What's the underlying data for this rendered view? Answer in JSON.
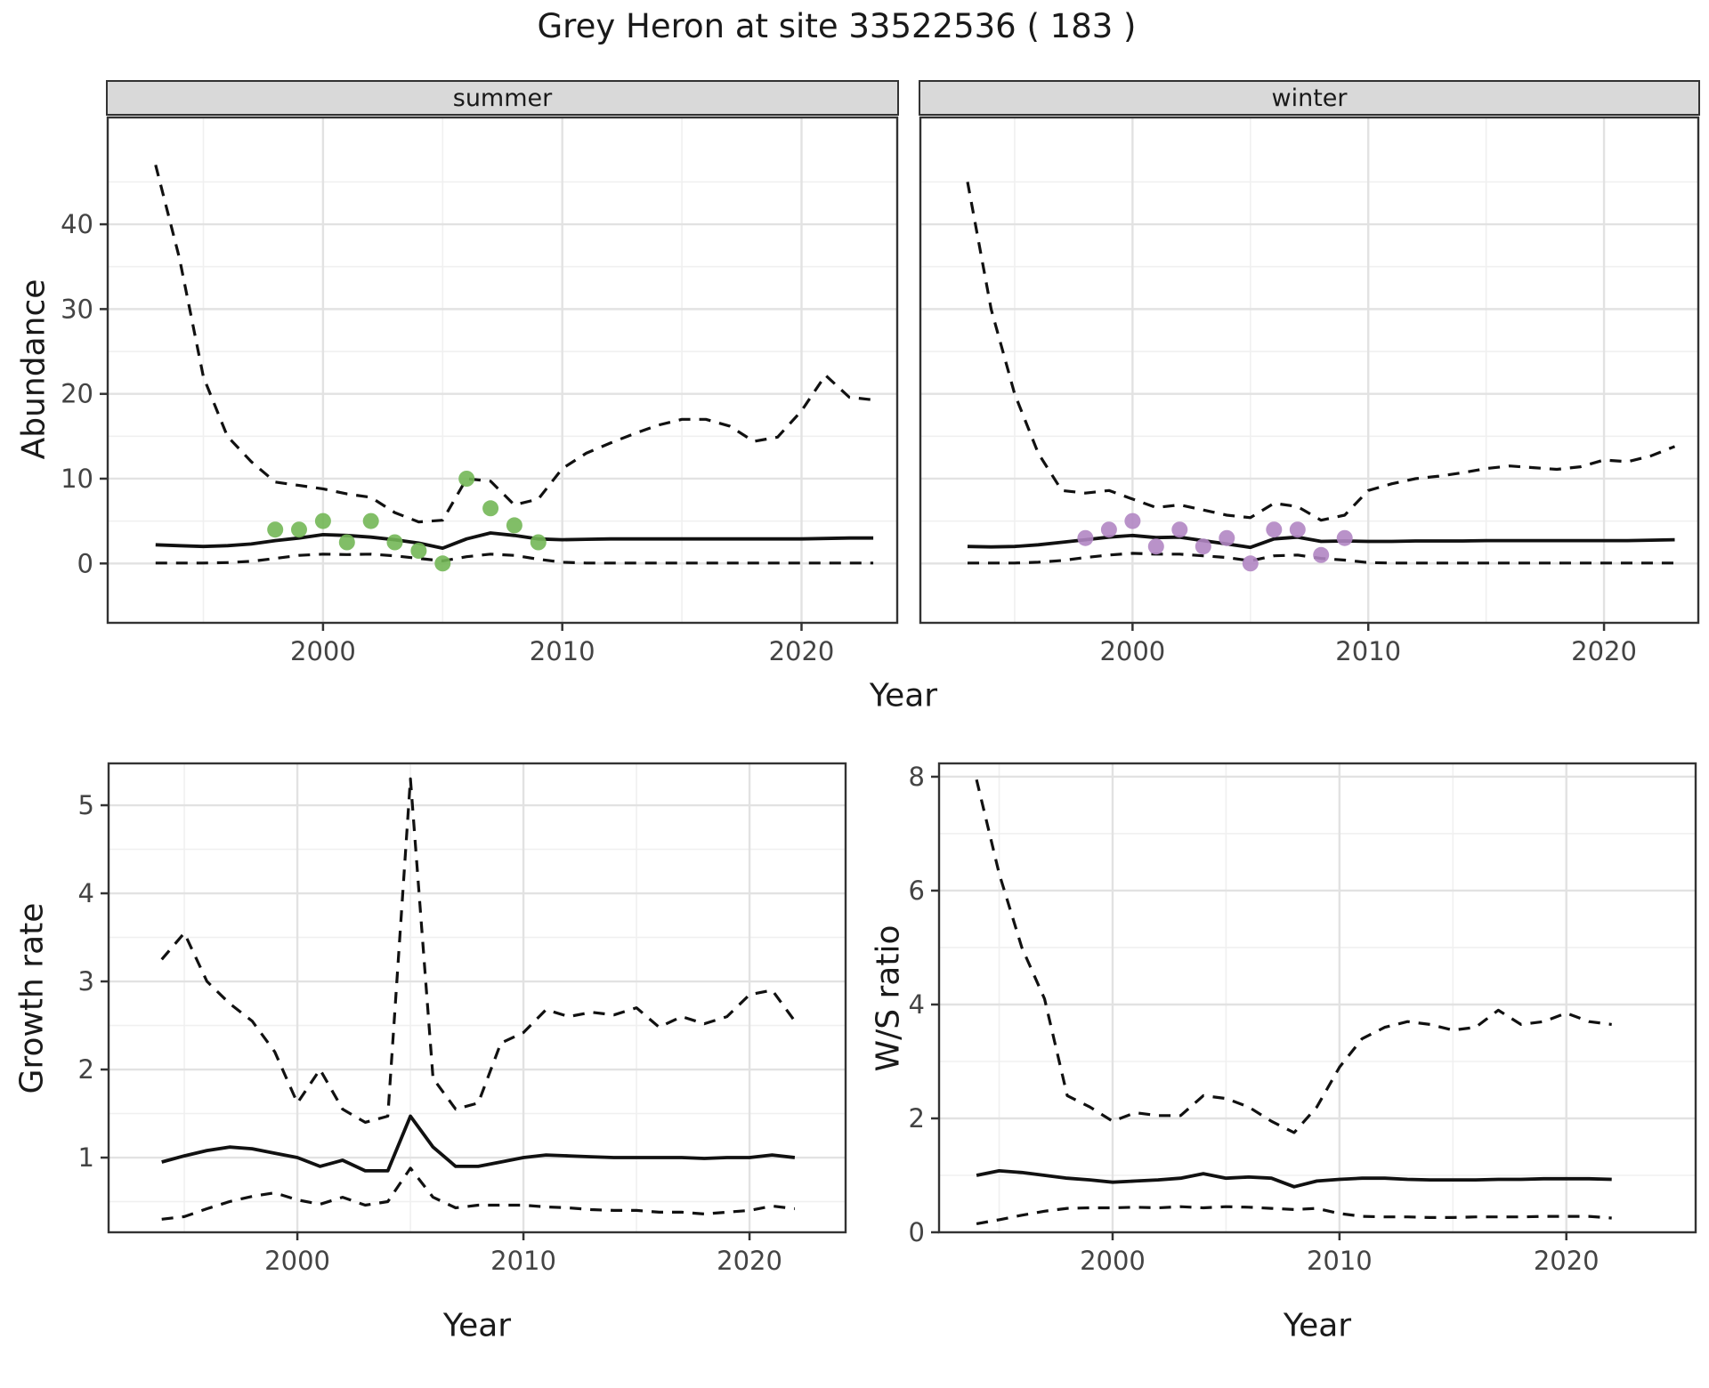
{
  "title": "Grey Heron at site 33522536 ( 183 )",
  "facets": [
    "summer",
    "winter"
  ],
  "axis_titles": {
    "abundance": "Abundance",
    "year": "Year",
    "growth_rate": "Growth rate",
    "ws_ratio": "W/S ratio"
  },
  "colors": {
    "summer_points": "#73b757",
    "winter_points": "#b186c3",
    "line": "#111111",
    "strip_bg": "#d9d9d9",
    "grid_major": "#e2e2e2",
    "grid_minor": "#f0f0f0",
    "panel_border": "#333333",
    "tick_label": "#444444"
  },
  "chart_data": [
    {
      "id": "summer-abundance",
      "type": "line",
      "facet_label": "summer",
      "xlabel": "Year",
      "ylabel": "Abundance",
      "xlim": [
        1991,
        2024
      ],
      "ylim": [
        -7,
        52.6
      ],
      "x_ticks": [
        2000,
        2010,
        2020
      ],
      "x_minor": [
        1995,
        2005,
        2015
      ],
      "y_ticks": [
        0,
        10,
        20,
        30,
        40
      ],
      "y_minor": [
        5,
        15,
        25,
        35,
        45
      ],
      "series": [
        {
          "name": "upper_ci",
          "style": "dashed",
          "x_start": 1993,
          "y": [
            47,
            36,
            22,
            15,
            12,
            9.6,
            9.2,
            8.8,
            8.2,
            7.8,
            6,
            4.9,
            5.1,
            10,
            9.7,
            6.9,
            7.6,
            11.2,
            13,
            14.2,
            15.3,
            16.3,
            17,
            17,
            16.2,
            14.4,
            14.9,
            18,
            22.2,
            19.6,
            19.3
          ]
        },
        {
          "name": "median",
          "style": "solid",
          "x_start": 1993,
          "y": [
            2.2,
            2.1,
            2,
            2.1,
            2.3,
            2.7,
            3,
            3.4,
            3.3,
            3.1,
            2.8,
            2.4,
            1.8,
            2.9,
            3.6,
            3.3,
            2.9,
            2.8,
            2.85,
            2.9,
            2.9,
            2.9,
            2.9,
            2.9,
            2.9,
            2.9,
            2.9,
            2.9,
            2.95,
            3,
            3
          ]
        },
        {
          "name": "lower_ci",
          "style": "dashed",
          "x_start": 1993,
          "y": [
            0.05,
            0.05,
            0.05,
            0.1,
            0.25,
            0.6,
            0.95,
            1.1,
            1.05,
            1.1,
            0.9,
            0.6,
            0.3,
            0.8,
            1.1,
            0.95,
            0.5,
            0.15,
            0.05,
            0.05,
            0.05,
            0.05,
            0.05,
            0.05,
            0.05,
            0.05,
            0.05,
            0.05,
            0.05,
            0.05,
            0.05
          ]
        }
      ],
      "points": {
        "name": "observed_counts",
        "color": "#73b757",
        "x_start": 1998,
        "y": [
          4,
          4,
          5,
          2.5,
          5,
          2.5,
          1.5,
          0,
          10,
          6.5,
          4.5,
          2.5
        ]
      }
    },
    {
      "id": "winter-abundance",
      "type": "line",
      "facet_label": "winter",
      "xlabel": "Year",
      "ylabel": "Abundance",
      "xlim": [
        1991,
        2024
      ],
      "ylim": [
        -7,
        52.6
      ],
      "x_ticks": [
        2000,
        2010,
        2020
      ],
      "x_minor": [
        1995,
        2005,
        2015
      ],
      "y_ticks": [
        0,
        10,
        20,
        30,
        40
      ],
      "y_minor": [
        5,
        15,
        25,
        35,
        45
      ],
      "series": [
        {
          "name": "upper_ci",
          "style": "dashed",
          "x_start": 1993,
          "y": [
            45,
            30,
            20,
            13,
            8.6,
            8.3,
            8.6,
            7.6,
            6.6,
            6.9,
            6.3,
            5.7,
            5.4,
            7.1,
            6.7,
            5.1,
            5.7,
            8.6,
            9.4,
            10,
            10.3,
            10.7,
            11.2,
            11.5,
            11.3,
            11.1,
            11.4,
            12.2,
            12,
            12.7,
            13.8
          ]
        },
        {
          "name": "median",
          "style": "solid",
          "x_start": 1993,
          "y": [
            2,
            1.95,
            2,
            2.2,
            2.5,
            2.8,
            3.1,
            3.3,
            3.05,
            3.1,
            2.7,
            2.3,
            1.9,
            2.9,
            3.1,
            2.6,
            2.65,
            2.6,
            2.6,
            2.65,
            2.65,
            2.65,
            2.7,
            2.7,
            2.7,
            2.7,
            2.7,
            2.7,
            2.7,
            2.75,
            2.8
          ]
        },
        {
          "name": "lower_ci",
          "style": "dashed",
          "x_start": 1993,
          "y": [
            0.05,
            0.05,
            0.05,
            0.15,
            0.35,
            0.7,
            1,
            1.2,
            1.1,
            1.1,
            0.9,
            0.7,
            0.3,
            0.9,
            1,
            0.6,
            0.4,
            0.1,
            0.05,
            0.05,
            0.05,
            0.05,
            0.05,
            0.05,
            0.05,
            0.05,
            0.05,
            0.05,
            0.05,
            0.05,
            0.05
          ]
        }
      ],
      "points": {
        "name": "observed_counts",
        "color": "#b186c3",
        "x_start": 1998,
        "y": [
          3,
          4,
          5,
          2,
          4,
          2,
          3,
          0,
          4,
          4,
          1,
          3
        ]
      }
    },
    {
      "id": "growth-rate",
      "type": "line",
      "facet_label": "",
      "xlabel": "Year",
      "ylabel": "Growth rate",
      "xlim": [
        1991.65,
        2024.25
      ],
      "ylim": [
        0.152,
        5.475
      ],
      "x_ticks": [
        2000,
        2010,
        2020
      ],
      "x_minor": [
        1995,
        2005,
        2015
      ],
      "y_ticks": [
        1,
        2,
        3,
        4,
        5
      ],
      "y_minor": [
        0.5,
        1.5,
        2.5,
        3.5,
        4.5
      ],
      "series": [
        {
          "name": "upper_ci",
          "style": "dashed",
          "x_start": 1994,
          "y": [
            3.25,
            3.55,
            3,
            2.75,
            2.55,
            2.2,
            1.62,
            2,
            1.55,
            1.4,
            1.47,
            5.3,
            1.9,
            1.55,
            1.62,
            2.3,
            2.42,
            2.68,
            2.6,
            2.65,
            2.62,
            2.7,
            2.48,
            2.6,
            2.52,
            2.6,
            2.85,
            2.9,
            2.55
          ]
        },
        {
          "name": "median",
          "style": "solid",
          "x_start": 1994,
          "y": [
            0.95,
            1.02,
            1.08,
            1.12,
            1.1,
            1.05,
            1,
            0.9,
            0.97,
            0.85,
            0.85,
            1.47,
            1.12,
            0.9,
            0.9,
            0.95,
            1,
            1.03,
            1.02,
            1.01,
            1,
            1,
            1,
            1,
            0.99,
            1,
            1,
            1.03,
            1
          ]
        },
        {
          "name": "lower_ci",
          "style": "dashed",
          "x_start": 1994,
          "y": [
            0.3,
            0.33,
            0.42,
            0.5,
            0.56,
            0.6,
            0.52,
            0.47,
            0.55,
            0.46,
            0.5,
            0.88,
            0.55,
            0.43,
            0.46,
            0.46,
            0.46,
            0.44,
            0.43,
            0.41,
            0.4,
            0.4,
            0.38,
            0.38,
            0.36,
            0.38,
            0.4,
            0.45,
            0.42
          ]
        }
      ],
      "points": null
    },
    {
      "id": "ws-ratio",
      "type": "line",
      "facet_label": "",
      "xlabel": "Year",
      "ylabel": "W/S ratio",
      "xlim": [
        1992.35,
        2025.7
      ],
      "ylim": [
        0,
        8.234
      ],
      "x_ticks": [
        2000,
        2010,
        2020
      ],
      "x_minor": [
        1995,
        2005,
        2015
      ],
      "y_ticks": [
        0,
        2,
        4,
        6,
        8
      ],
      "y_minor": [
        1,
        3,
        5,
        7
      ],
      "series": [
        {
          "name": "upper_ci",
          "style": "dashed",
          "x_start": 1994,
          "y": [
            7.95,
            6.3,
            5,
            4.1,
            2.4,
            2.2,
            1.95,
            2.1,
            2.05,
            2.05,
            2.4,
            2.35,
            2.2,
            1.95,
            1.75,
            2.2,
            2.9,
            3.4,
            3.6,
            3.7,
            3.65,
            3.55,
            3.6,
            3.9,
            3.65,
            3.7,
            3.85,
            3.7,
            3.65
          ]
        },
        {
          "name": "median",
          "style": "solid",
          "x_start": 1994,
          "y": [
            1,
            1.08,
            1.05,
            1,
            0.95,
            0.92,
            0.88,
            0.9,
            0.92,
            0.95,
            1.03,
            0.95,
            0.97,
            0.95,
            0.8,
            0.9,
            0.93,
            0.95,
            0.95,
            0.93,
            0.92,
            0.92,
            0.92,
            0.93,
            0.93,
            0.94,
            0.94,
            0.94,
            0.93
          ]
        },
        {
          "name": "lower_ci",
          "style": "dashed",
          "x_start": 1994,
          "y": [
            0.15,
            0.22,
            0.3,
            0.37,
            0.42,
            0.43,
            0.43,
            0.44,
            0.43,
            0.45,
            0.43,
            0.45,
            0.44,
            0.42,
            0.4,
            0.42,
            0.33,
            0.28,
            0.27,
            0.27,
            0.26,
            0.26,
            0.27,
            0.27,
            0.27,
            0.28,
            0.28,
            0.28,
            0.25
          ]
        }
      ],
      "points": null
    }
  ]
}
